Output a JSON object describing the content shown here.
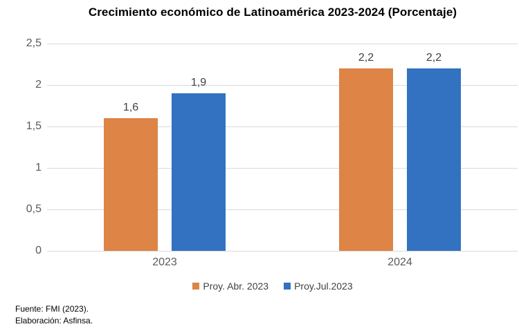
{
  "chart_data": {
    "type": "bar",
    "title": "Crecimiento económico de Latinoamérica 2023-2024 (Porcentaje)",
    "categories": [
      "2023",
      "2024"
    ],
    "series": [
      {
        "name": "Proy. Abr. 2023",
        "color": "#DD8446",
        "values": [
          1.6,
          2.2
        ]
      },
      {
        "name": "Proy.Jul.2023",
        "color": "#3272C0",
        "values": [
          1.9,
          2.2
        ]
      }
    ],
    "data_labels": [
      [
        "1,6",
        "2,2"
      ],
      [
        "1,9",
        "2,2"
      ]
    ],
    "ylim": [
      0,
      2.5
    ],
    "yticks": [
      {
        "value": 0,
        "label": "0"
      },
      {
        "value": 0.5,
        "label": "0,5"
      },
      {
        "value": 1,
        "label": "1"
      },
      {
        "value": 1.5,
        "label": "1,5"
      },
      {
        "value": 2,
        "label": "2"
      },
      {
        "value": 2.5,
        "label": "2,5"
      }
    ],
    "grid": true,
    "legend_position": "bottom",
    "gridline_color": "#D9D9D9",
    "axis_label_color": "#595959",
    "data_label_color": "#404040",
    "background_color": "#ffffff"
  },
  "footer": {
    "line1": "Fuente: FMI (2023).",
    "line2": "Elaboración: Asfinsa."
  }
}
